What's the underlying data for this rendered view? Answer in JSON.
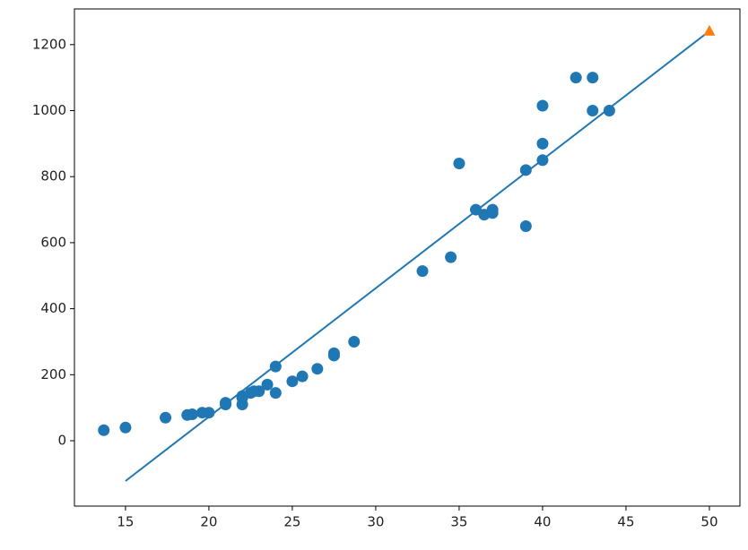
{
  "chart_data": {
    "type": "scatter",
    "xlim": [
      11.94,
      51.83
    ],
    "ylim": [
      -198,
      1308
    ],
    "xticks": [
      15,
      20,
      25,
      30,
      35,
      40,
      45,
      50
    ],
    "yticks": [
      0,
      200,
      400,
      600,
      800,
      1000,
      1200
    ],
    "series": [
      {
        "mode": "markers",
        "marker": "circle",
        "color": "#1f77b4",
        "x": [
          13.7,
          15,
          17.4,
          18.7,
          19,
          19.6,
          20,
          21,
          21,
          22,
          22,
          22,
          22.5,
          22.7,
          23,
          23.5,
          24,
          24,
          25,
          25.6,
          26.5,
          27.5,
          27.5,
          28.7,
          32.8,
          34.5,
          35,
          36,
          36.5,
          37,
          37,
          39,
          39,
          40,
          40,
          40,
          42,
          43,
          43,
          44
        ],
        "values": [
          32,
          40,
          70,
          78,
          80,
          85,
          85,
          110,
          115,
          110,
          130,
          135,
          145,
          150,
          150,
          170,
          225,
          145,
          180,
          195,
          218,
          258,
          265,
          300,
          514,
          556,
          840,
          700,
          685,
          690,
          700,
          650,
          820,
          850,
          900,
          1015,
          1100,
          1100,
          1000,
          1000
        ]
      },
      {
        "mode": "line",
        "color": "#1f77b4",
        "x": [
          15,
          50
        ],
        "values": [
          -122,
          1241
        ]
      },
      {
        "mode": "markers",
        "marker": "triangle",
        "color": "#ff7f0e",
        "x": [
          50
        ],
        "values": [
          1241
        ]
      }
    ]
  }
}
